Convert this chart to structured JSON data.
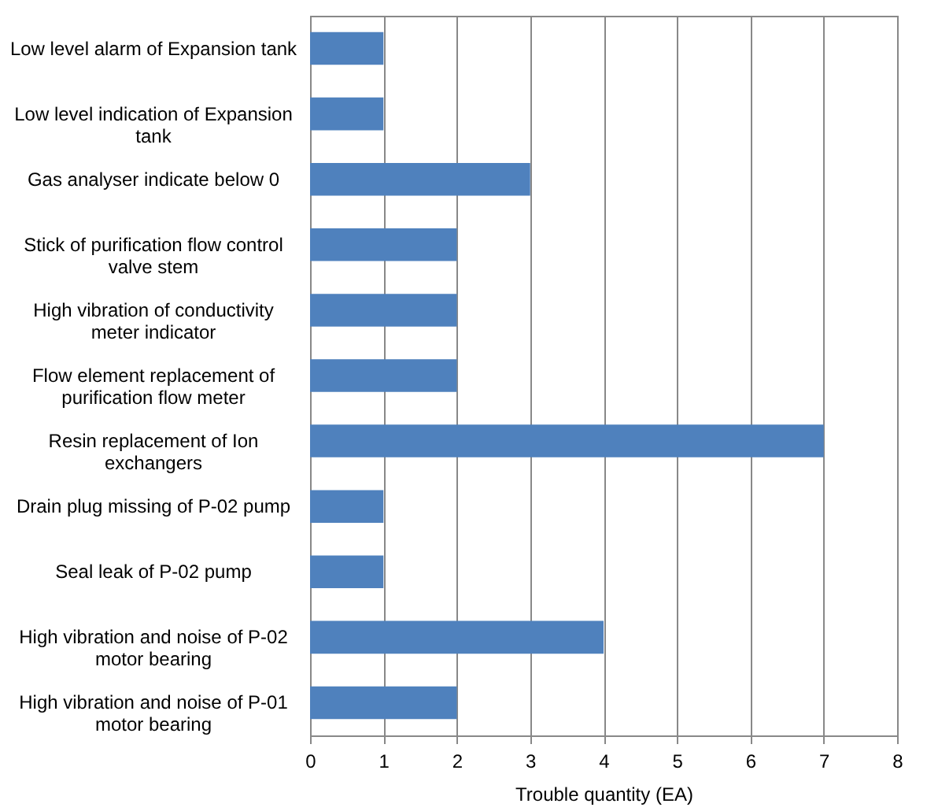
{
  "chart_data": {
    "type": "bar",
    "orientation": "horizontal",
    "xlabel": "Trouble quantity (EA)",
    "categories": [
      "Low level alarm of Expansion tank",
      "Low level indication of Expansion tank",
      "Gas analyser indicate below 0",
      "Stick of purification flow control valve stem",
      "High vibration of conductivity meter indicator",
      "Flow element replacement of purification flow meter",
      "Resin replacement of Ion exchangers",
      "Drain plug missing of P-02 pump",
      "Seal leak of P-02 pump",
      "High vibration and noise of P-02 motor bearing",
      "High vibration and noise of P-01 motor bearing"
    ],
    "values": [
      1,
      1,
      3,
      2,
      2,
      2,
      7,
      1,
      1,
      4,
      2
    ],
    "color": "#4f81bd",
    "xlim": [
      0,
      8
    ],
    "xticks": [
      0,
      1,
      2,
      3,
      4,
      5,
      6,
      7,
      8
    ],
    "grid": "x"
  }
}
